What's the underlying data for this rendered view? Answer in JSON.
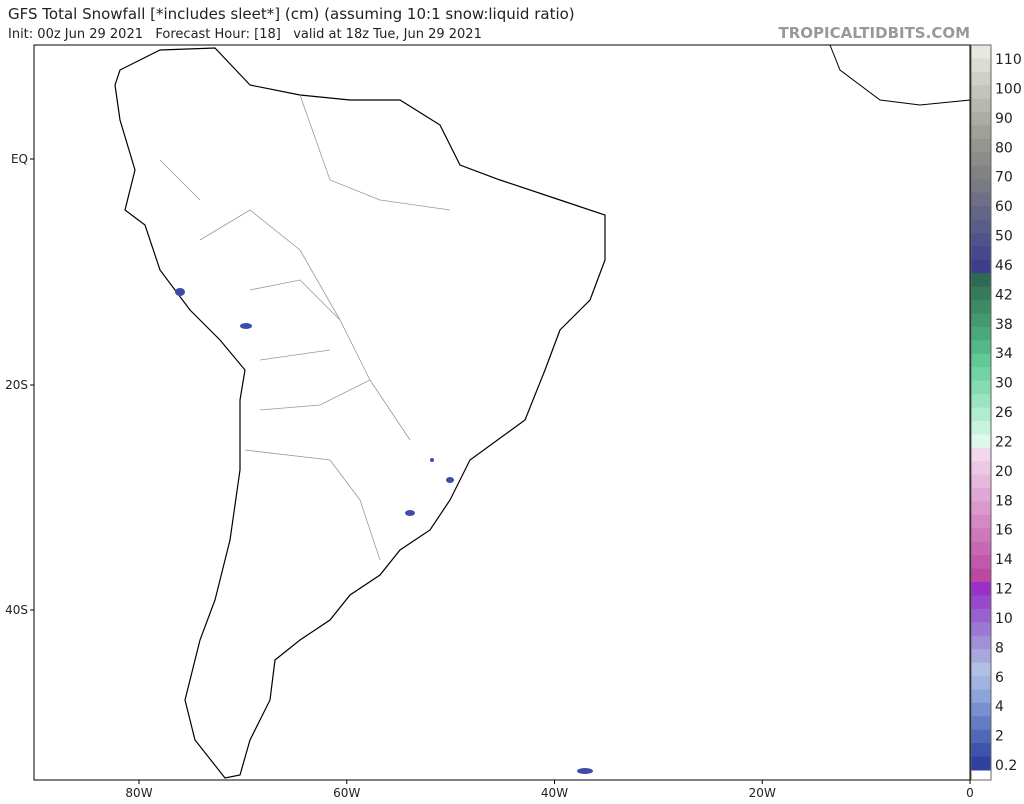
{
  "header": {
    "title": "GFS Total Snowfall [*includes sleet*] (cm) (assuming 10:1 snow:liquid ratio)",
    "subtitle": "Init: 00z Jun 29 2021   Forecast Hour: [18]   valid at 18z Tue, Jun 29 2021",
    "credit": "TROPICALTIDBITS.COM"
  },
  "map": {
    "lat_labels": [
      "EQ",
      "20S",
      "40S"
    ],
    "lon_labels": [
      "80W",
      "60W",
      "40W",
      "20W",
      "0"
    ]
  },
  "colorbar": {
    "labels": [
      110,
      100,
      90,
      80,
      70,
      60,
      50,
      46,
      42,
      38,
      34,
      30,
      26,
      22,
      20,
      18,
      16,
      14,
      12,
      10,
      8,
      6,
      4,
      2,
      0.2
    ],
    "colors": [
      "#e8e8e0",
      "#dcdcd2",
      "#d0d0c6",
      "#c4c4ba",
      "#b8b8ae",
      "#acaca4",
      "#a0a09a",
      "#96968f",
      "#8c8c88",
      "#828282",
      "#787a84",
      "#6e7086",
      "#646688",
      "#5a5c8a",
      "#50528c",
      "#46488e",
      "#3c3e8c",
      "#2e6a52",
      "#357a5c",
      "#3c8a66",
      "#439a70",
      "#4aa87a",
      "#55b888",
      "#62c896",
      "#72d4a4",
      "#86dcb2",
      "#9ae4c0",
      "#b0ecd0",
      "#c8f2de",
      "#e0f8ec",
      "#f2d8ec",
      "#ecc8e4",
      "#e6b8dc",
      "#e0a8d4",
      "#da98cc",
      "#d488c4",
      "#ce78bc",
      "#c868b4",
      "#c258ac",
      "#bc48a4",
      "#9a30c8",
      "#9848cc",
      "#9a60d0",
      "#9c78d4",
      "#a090d8",
      "#a8a8dc",
      "#b0c0e4",
      "#a0b4e0",
      "#8ca4d8",
      "#7890d0",
      "#647cc4",
      "#5068b8",
      "#3c54ac",
      "#3040a0"
    ]
  }
}
